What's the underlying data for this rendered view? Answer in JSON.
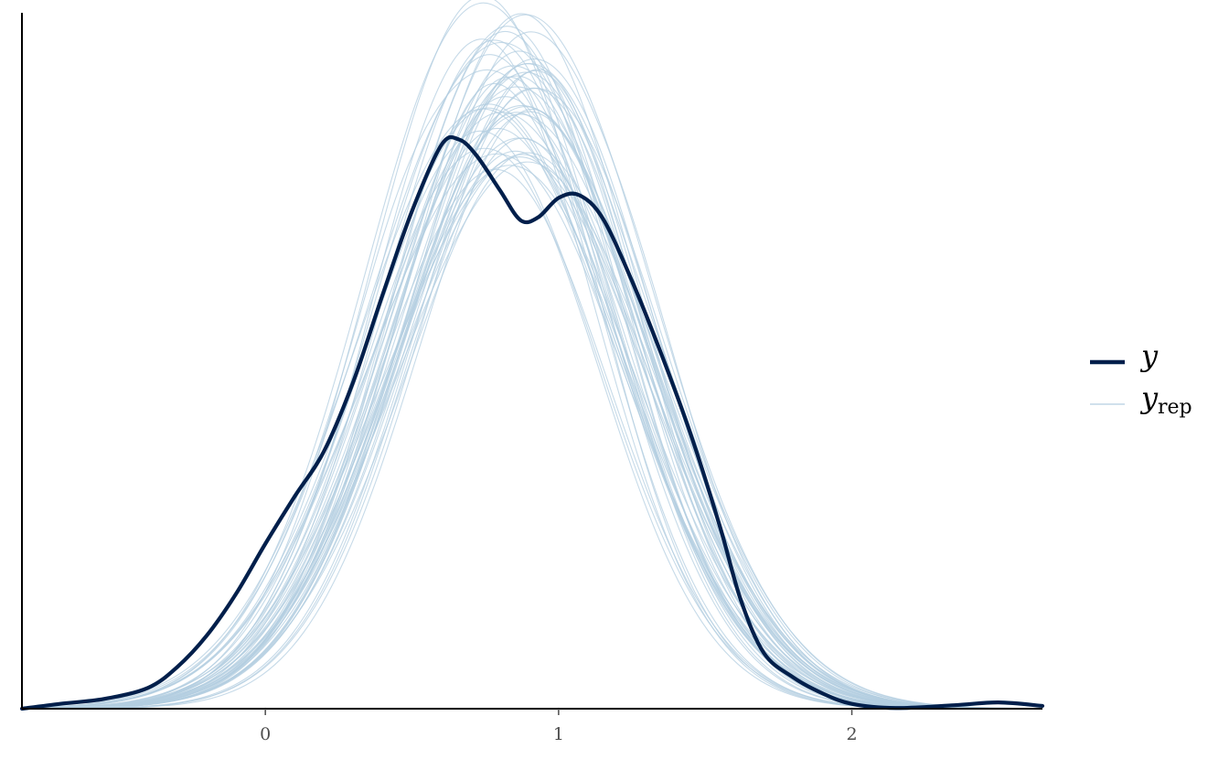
{
  "chart_data": {
    "type": "line",
    "title": "",
    "xlabel": "",
    "ylabel": "",
    "xlim": [
      -0.83,
      2.65
    ],
    "ylim": [
      0,
      1.0
    ],
    "x_ticks": [
      0,
      1,
      2
    ],
    "x_tick_labels": [
      "0",
      "1",
      "2"
    ],
    "y_axis_ticks_shown": false,
    "grid": false,
    "legend_position": "right",
    "legend": [
      {
        "key": "y",
        "label": "y",
        "subscript": "",
        "style": "thick dark line"
      },
      {
        "key": "yrep",
        "label": "y",
        "subscript": "rep",
        "style": "thin light line"
      }
    ],
    "colors": {
      "y": "#011f4b",
      "yrep": "#b3cde0",
      "axis": "#000000",
      "tick_label": "#4d4d4d"
    },
    "series": [
      {
        "name": "y",
        "points": [
          [
            -0.83,
            0.0
          ],
          [
            -0.7,
            0.007
          ],
          [
            -0.55,
            0.014
          ],
          [
            -0.4,
            0.03
          ],
          [
            -0.3,
            0.06
          ],
          [
            -0.2,
            0.105
          ],
          [
            -0.1,
            0.165
          ],
          [
            0.0,
            0.237
          ],
          [
            0.1,
            0.305
          ],
          [
            0.2,
            0.37
          ],
          [
            0.3,
            0.47
          ],
          [
            0.4,
            0.595
          ],
          [
            0.5,
            0.715
          ],
          [
            0.6,
            0.81
          ],
          [
            0.66,
            0.818
          ],
          [
            0.72,
            0.795
          ],
          [
            0.8,
            0.745
          ],
          [
            0.87,
            0.702
          ],
          [
            0.93,
            0.706
          ],
          [
            1.0,
            0.734
          ],
          [
            1.07,
            0.738
          ],
          [
            1.15,
            0.705
          ],
          [
            1.25,
            0.615
          ],
          [
            1.35,
            0.51
          ],
          [
            1.45,
            0.395
          ],
          [
            1.55,
            0.262
          ],
          [
            1.62,
            0.158
          ],
          [
            1.7,
            0.08
          ],
          [
            1.8,
            0.045
          ],
          [
            1.9,
            0.022
          ],
          [
            2.0,
            0.007
          ],
          [
            2.15,
            0.001
          ],
          [
            2.35,
            0.005
          ],
          [
            2.5,
            0.009
          ],
          [
            2.65,
            0.004
          ]
        ]
      }
    ],
    "yrep_draws": {
      "count": 50,
      "mean_peak_x": 0.82,
      "peak_height_range": [
        0.77,
        1.0
      ],
      "sd_range": [
        0.38,
        0.45
      ]
    }
  }
}
